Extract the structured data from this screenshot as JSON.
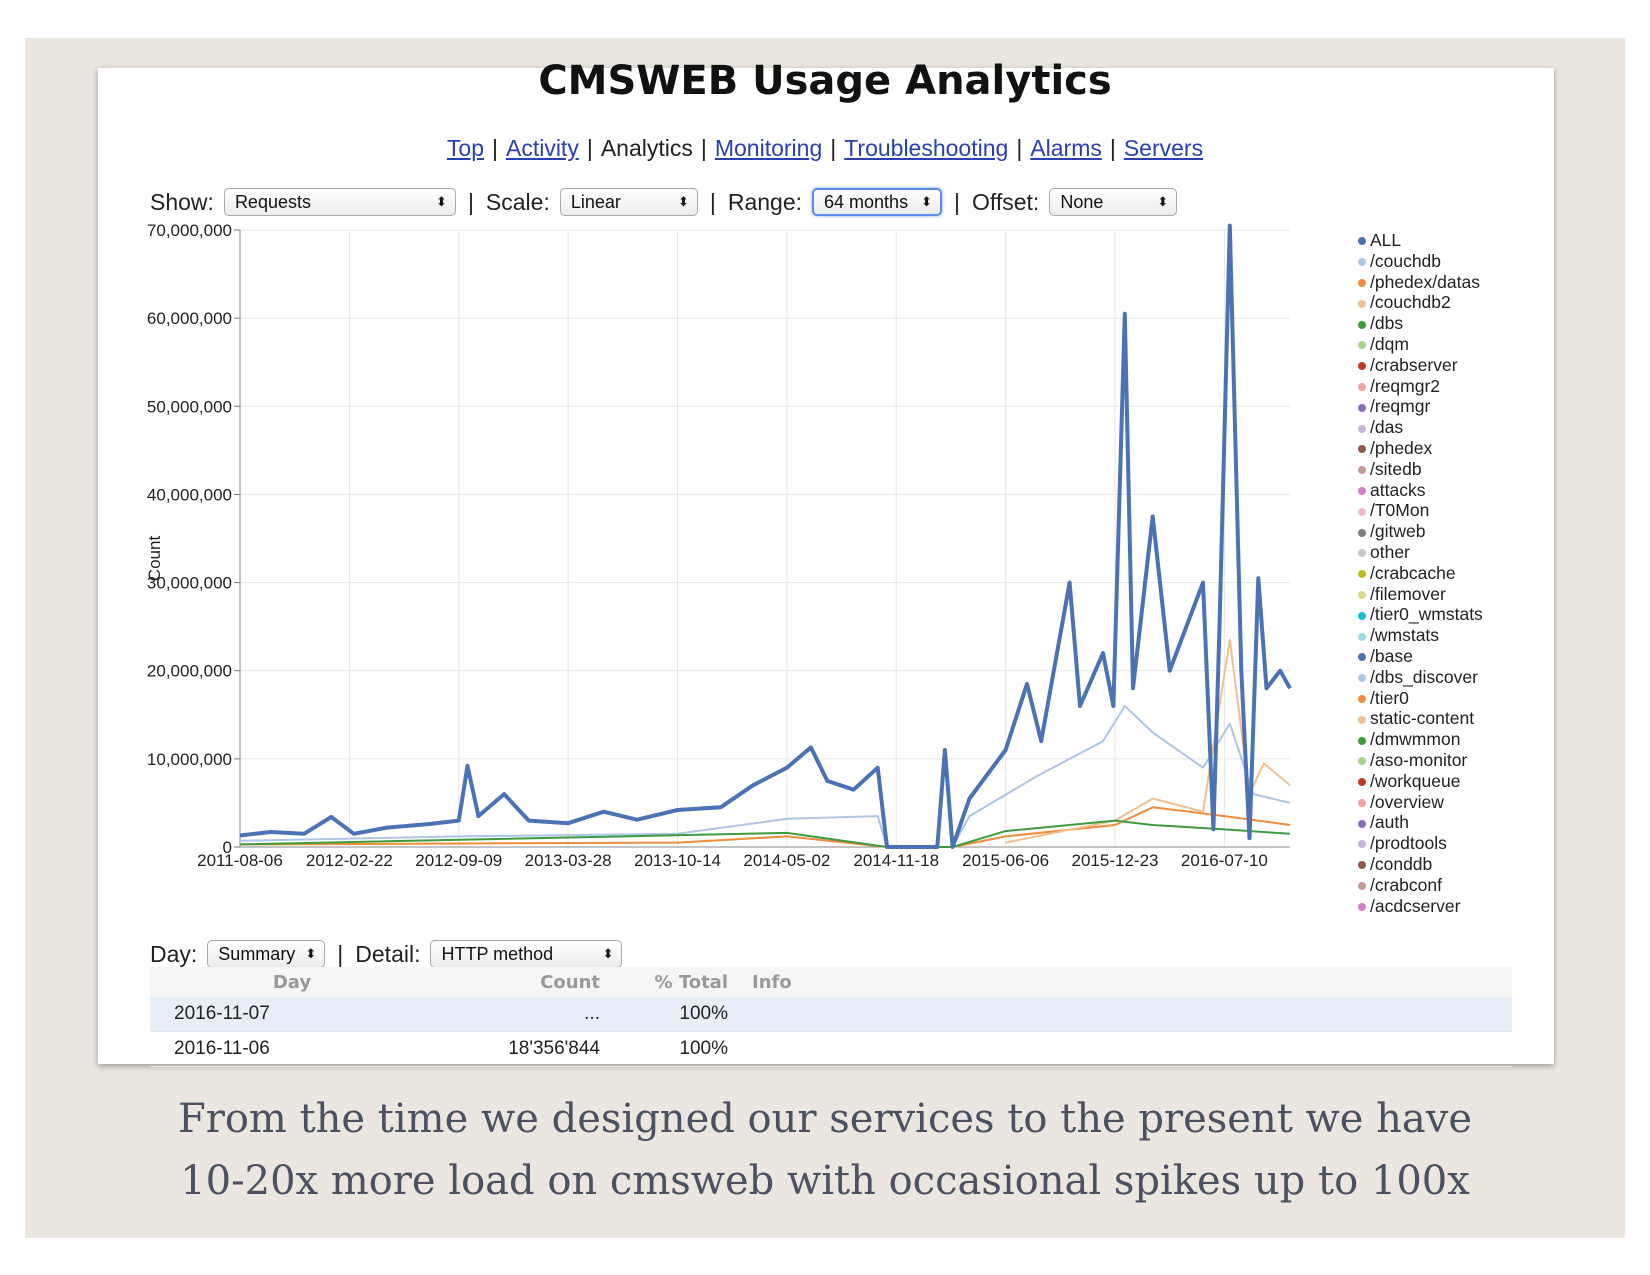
{
  "page": {
    "title": "CMSWEB Usage Analytics",
    "caption_lines": [
      "From the time we designed our services to the present we have",
      "10-20x more load on cmsweb with occasional spikes up to 100x"
    ]
  },
  "nav": {
    "items": [
      {
        "label": "Top",
        "link": true
      },
      {
        "label": "Activity",
        "link": true
      },
      {
        "label": "Analytics",
        "link": false
      },
      {
        "label": "Monitoring",
        "link": true
      },
      {
        "label": "Troubleshooting",
        "link": true
      },
      {
        "label": "Alarms",
        "link": true
      },
      {
        "label": "Servers",
        "link": true
      }
    ],
    "separator": "|"
  },
  "controls": {
    "show_label": "Show:",
    "show_value": "Requests",
    "scale_label": "Scale:",
    "scale_value": "Linear",
    "range_label": "Range:",
    "range_value": "64 months",
    "offset_label": "Offset:",
    "offset_value": "None",
    "separator": "|",
    "arrow": "⬍"
  },
  "chart_data": {
    "type": "line",
    "ylabel": "Count",
    "ylim": [
      0,
      70000000
    ],
    "y_ticks": [
      {
        "value": 70000000,
        "label": "70,000,000"
      },
      {
        "value": 60000000,
        "label": "60,000,000"
      },
      {
        "value": 50000000,
        "label": "50,000,000"
      },
      {
        "value": 40000000,
        "label": "40,000,000"
      },
      {
        "value": 30000000,
        "label": "30,000,000"
      },
      {
        "value": 20000000,
        "label": "20,000,000"
      },
      {
        "value": 10000000,
        "label": "10,000,000"
      },
      {
        "value": 0,
        "label": "0"
      }
    ],
    "x_ticks": [
      "2011-08-06",
      "2012-02-22",
      "2012-09-09",
      "2013-03-28",
      "2013-10-14",
      "2014-05-02",
      "2014-11-18",
      "2015-06-06",
      "2015-12-23",
      "2016-07-10"
    ],
    "x_range": [
      "2011-08-06",
      "2016-11-07"
    ],
    "grid": true,
    "legend_position": "right",
    "series": [
      {
        "name": "ALL",
        "color": "#4a72b5",
        "points": [
          [
            "2011-08-06",
            1300000
          ],
          [
            "2011-10-01",
            1700000
          ],
          [
            "2011-12-01",
            1500000
          ],
          [
            "2012-01-20",
            3400000
          ],
          [
            "2012-03-01",
            1500000
          ],
          [
            "2012-05-01",
            2200000
          ],
          [
            "2012-07-15",
            2600000
          ],
          [
            "2012-09-09",
            3000000
          ],
          [
            "2012-09-25",
            9200000
          ],
          [
            "2012-10-15",
            3500000
          ],
          [
            "2012-12-01",
            6000000
          ],
          [
            "2013-01-15",
            3000000
          ],
          [
            "2013-03-28",
            2700000
          ],
          [
            "2013-06-01",
            4000000
          ],
          [
            "2013-08-01",
            3100000
          ],
          [
            "2013-10-14",
            4200000
          ],
          [
            "2014-01-01",
            4500000
          ],
          [
            "2014-03-01",
            7000000
          ],
          [
            "2014-05-02",
            9000000
          ],
          [
            "2014-06-15",
            11300000
          ],
          [
            "2014-07-15",
            7500000
          ],
          [
            "2014-09-01",
            6500000
          ],
          [
            "2014-10-15",
            9000000
          ],
          [
            "2014-11-01",
            0
          ],
          [
            "2015-02-01",
            0
          ],
          [
            "2015-02-15",
            11000000
          ],
          [
            "2015-03-01",
            0
          ],
          [
            "2015-04-01",
            5500000
          ],
          [
            "2015-06-06",
            11000000
          ],
          [
            "2015-07-15",
            18500000
          ],
          [
            "2015-08-10",
            12000000
          ],
          [
            "2015-10-01",
            30000000
          ],
          [
            "2015-10-20",
            16000000
          ],
          [
            "2015-12-01",
            22000000
          ],
          [
            "2015-12-20",
            16000000
          ],
          [
            "2016-01-10",
            60500000
          ],
          [
            "2016-01-25",
            18000000
          ],
          [
            "2016-03-01",
            37500000
          ],
          [
            "2016-04-01",
            20000000
          ],
          [
            "2016-06-01",
            30000000
          ],
          [
            "2016-06-20",
            2000000
          ],
          [
            "2016-07-01",
            25000000
          ],
          [
            "2016-07-20",
            70500000
          ],
          [
            "2016-08-10",
            20000000
          ],
          [
            "2016-08-25",
            1000000
          ],
          [
            "2016-09-10",
            30500000
          ],
          [
            "2016-09-25",
            18000000
          ],
          [
            "2016-10-20",
            20000000
          ],
          [
            "2016-11-07",
            18000000
          ]
        ]
      },
      {
        "name": "/couchdb",
        "color": "#b0c4e6",
        "points": [
          [
            "2011-08-06",
            700000
          ],
          [
            "2012-09-09",
            1200000
          ],
          [
            "2013-10-14",
            1500000
          ],
          [
            "2014-05-02",
            3200000
          ],
          [
            "2014-10-15",
            3500000
          ],
          [
            "2014-11-01",
            0
          ],
          [
            "2015-03-01",
            0
          ],
          [
            "2015-04-01",
            3500000
          ],
          [
            "2015-08-01",
            8000000
          ],
          [
            "2015-12-01",
            12000000
          ],
          [
            "2016-01-10",
            16000000
          ],
          [
            "2016-03-01",
            13000000
          ],
          [
            "2016-06-01",
            9000000
          ],
          [
            "2016-07-20",
            14000000
          ],
          [
            "2016-09-01",
            6000000
          ],
          [
            "2016-11-07",
            5000000
          ]
        ]
      },
      {
        "name": "/phedex/datas",
        "color": "#f08c3a",
        "points": [
          [
            "2011-08-06",
            300000
          ],
          [
            "2013-10-14",
            500000
          ],
          [
            "2014-05-02",
            1200000
          ],
          [
            "2014-11-01",
            0
          ],
          [
            "2015-03-01",
            0
          ],
          [
            "2015-06-06",
            1200000
          ],
          [
            "2015-12-23",
            2500000
          ],
          [
            "2016-03-01",
            4500000
          ],
          [
            "2016-07-10",
            3500000
          ],
          [
            "2016-11-07",
            2500000
          ]
        ]
      },
      {
        "name": "/couchdb2",
        "color": "#f2c08f",
        "points": [
          [
            "2015-06-06",
            500000
          ],
          [
            "2015-12-23",
            3000000
          ],
          [
            "2016-03-01",
            5500000
          ],
          [
            "2016-06-01",
            4000000
          ],
          [
            "2016-07-20",
            23500000
          ],
          [
            "2016-08-25",
            6000000
          ],
          [
            "2016-09-20",
            9500000
          ],
          [
            "2016-11-07",
            7000000
          ]
        ]
      },
      {
        "name": "/dbs",
        "color": "#3e9b3e",
        "points": [
          [
            "2011-08-06",
            300000
          ],
          [
            "2014-05-02",
            1600000
          ],
          [
            "2014-11-01",
            0
          ],
          [
            "2015-03-01",
            0
          ],
          [
            "2015-06-06",
            1800000
          ],
          [
            "2015-12-23",
            3000000
          ],
          [
            "2016-03-01",
            2500000
          ],
          [
            "2016-07-10",
            2000000
          ],
          [
            "2016-11-07",
            1500000
          ]
        ]
      }
    ]
  },
  "legend": {
    "items": [
      {
        "label": "ALL",
        "color": "#4a72b5"
      },
      {
        "label": "/couchdb",
        "color": "#b0c4e6"
      },
      {
        "label": "/phedex/datas",
        "color": "#f08c3a"
      },
      {
        "label": "/couchdb2",
        "color": "#f2c08f"
      },
      {
        "label": "/dbs",
        "color": "#3e9b3e"
      },
      {
        "label": "/dqm",
        "color": "#a6d28c"
      },
      {
        "label": "/crabserver",
        "color": "#c0392b"
      },
      {
        "label": "/reqmgr2",
        "color": "#f0a0a0"
      },
      {
        "label": "/reqmgr",
        "color": "#8a6fc0"
      },
      {
        "label": "/das",
        "color": "#c4b5dc"
      },
      {
        "label": "/phedex",
        "color": "#8b5a4a"
      },
      {
        "label": "/sitedb",
        "color": "#c49c94"
      },
      {
        "label": "attacks",
        "color": "#d37ec8"
      },
      {
        "label": "/T0Mon",
        "color": "#f3b6d2"
      },
      {
        "label": "/gitweb",
        "color": "#7f7f7f"
      },
      {
        "label": "other",
        "color": "#c7c7c7"
      },
      {
        "label": "/crabcache",
        "color": "#bcbd22"
      },
      {
        "label": "/filemover",
        "color": "#dbdb8d"
      },
      {
        "label": "/tier0_wmstats",
        "color": "#17becf"
      },
      {
        "label": "/wmstats",
        "color": "#9edae5"
      },
      {
        "label": "/base",
        "color": "#4a72b5"
      },
      {
        "label": "/dbs_discover",
        "color": "#b0c4e6"
      },
      {
        "label": "/tier0",
        "color": "#f08c3a"
      },
      {
        "label": "static-content",
        "color": "#f2c08f"
      },
      {
        "label": "/dmwmmon",
        "color": "#3e9b3e"
      },
      {
        "label": "/aso-monitor",
        "color": "#a6d28c"
      },
      {
        "label": "/workqueue",
        "color": "#c0392b"
      },
      {
        "label": "/overview",
        "color": "#f0a0a0"
      },
      {
        "label": "/auth",
        "color": "#8a6fc0"
      },
      {
        "label": "/prodtools",
        "color": "#c4b5dc"
      },
      {
        "label": "/conddb",
        "color": "#8b5a4a"
      },
      {
        "label": "/crabconf",
        "color": "#c49c94"
      },
      {
        "label": "/acdcserver",
        "color": "#d37ec8"
      }
    ]
  },
  "detail": {
    "day_label": "Day:",
    "day_value": "Summary",
    "detail_label": "Detail:",
    "detail_value": "HTTP method",
    "separator": "|",
    "arrow": "⬍"
  },
  "table": {
    "headers": [
      "Day",
      "Count",
      "% Total",
      "Info"
    ],
    "rows": [
      {
        "day": "2016-11-07",
        "count": "...",
        "pct": "100%",
        "info": ""
      },
      {
        "day": "2016-11-06",
        "count": "18'356'844",
        "pct": "100%",
        "info": ""
      }
    ]
  }
}
